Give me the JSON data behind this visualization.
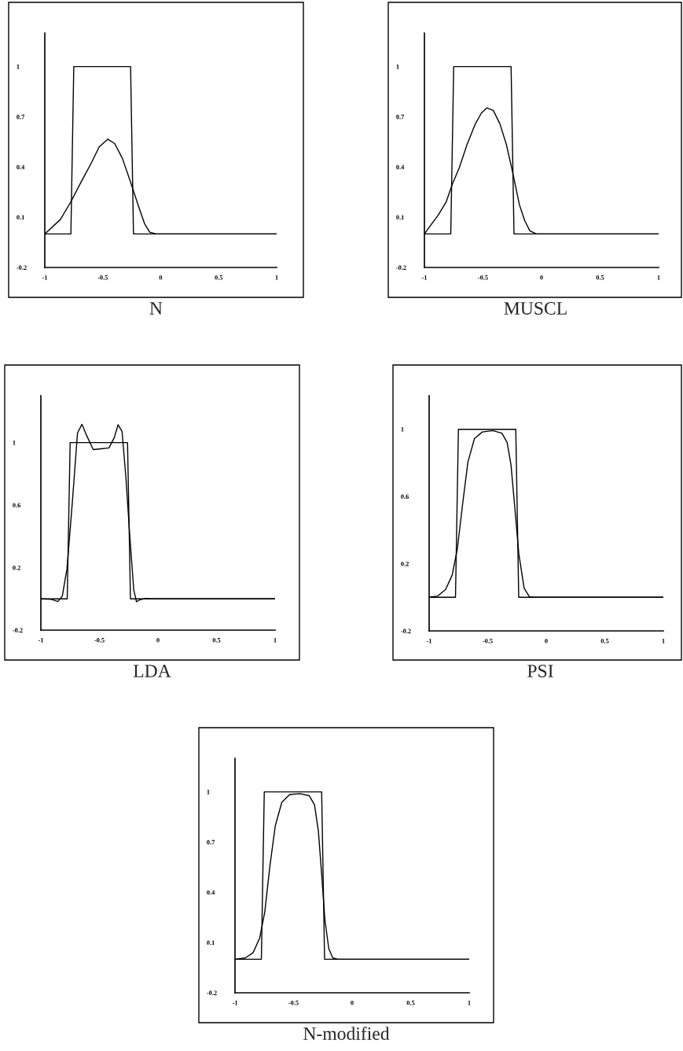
{
  "chart_data": [
    {
      "type": "line",
      "title": "N",
      "xlim": [
        -1,
        1
      ],
      "ylim": [
        -0.2,
        1.2
      ],
      "xticks": [
        -1,
        -0.5,
        0,
        0.5,
        1
      ],
      "yticks": [
        -0.2,
        0.1,
        0.4,
        0.7,
        1
      ],
      "grid": false,
      "line_style": "solid",
      "series": [
        {
          "color": "#000000",
          "x": [
            -1,
            -0.775,
            -0.75,
            -0.26,
            -0.235,
            1
          ],
          "values": [
            0,
            0,
            1,
            1,
            0,
            0
          ]
        },
        {
          "color": "#000000",
          "x": [
            -1,
            -0.866,
            -0.777,
            -0.687,
            -0.598,
            -0.531,
            -0.457,
            -0.397,
            -0.33,
            -0.263,
            -0.196,
            -0.14,
            -0.095,
            -0.039,
            1
          ],
          "values": [
            0,
            0.086,
            0.19,
            0.31,
            0.425,
            0.52,
            0.566,
            0.54,
            0.45,
            0.316,
            0.175,
            0.063,
            0.011,
            0,
            0
          ]
        }
      ]
    },
    {
      "type": "line",
      "title": "MUSCL",
      "xlim": [
        -1,
        1
      ],
      "ylim": [
        -0.2,
        1.2
      ],
      "xticks": [
        -1,
        -0.5,
        0,
        0.5,
        1
      ],
      "yticks": [
        -0.2,
        0.1,
        0.4,
        0.7,
        1
      ],
      "grid": false,
      "line_style": "solid",
      "series": [
        {
          "color": "#000000",
          "x": [
            -1,
            -0.775,
            -0.75,
            -0.26,
            -0.235,
            1
          ],
          "values": [
            0,
            0,
            1,
            1,
            0,
            0
          ]
        },
        {
          "color": "#000000",
          "x": [
            -1,
            -0.949,
            -0.882,
            -0.815,
            -0.76,
            -0.703,
            -0.636,
            -0.569,
            -0.514,
            -0.468,
            -0.412,
            -0.356,
            -0.3,
            -0.245,
            -0.189,
            -0.144,
            -0.1,
            -0.044,
            1
          ],
          "values": [
            0,
            0.05,
            0.113,
            0.19,
            0.3,
            0.394,
            0.534,
            0.652,
            0.722,
            0.753,
            0.738,
            0.659,
            0.534,
            0.363,
            0.175,
            0.081,
            0.019,
            0,
            0
          ]
        }
      ]
    },
    {
      "type": "line",
      "title": "LDA",
      "xlim": [
        -1,
        1
      ],
      "ylim": [
        -0.2,
        1.3
      ],
      "xticks": [
        -1,
        -0.5,
        0,
        0.5,
        1
      ],
      "yticks": [
        -0.2,
        0.2,
        0.6,
        1
      ],
      "grid": false,
      "line_style": "solid",
      "series": [
        {
          "color": "#000000",
          "x": [
            -1,
            -0.775,
            -0.75,
            -0.26,
            -0.235,
            1
          ],
          "values": [
            0,
            0,
            1,
            1,
            0,
            0
          ]
        },
        {
          "color": "#000000",
          "x": [
            -1,
            -0.911,
            -0.855,
            -0.817,
            -0.777,
            -0.732,
            -0.687,
            -0.649,
            -0.609,
            -0.553,
            -0.486,
            -0.419,
            -0.374,
            -0.341,
            -0.307,
            -0.274,
            -0.24,
            -0.207,
            -0.184,
            -0.151,
            -0.106,
            -0.061,
            1
          ],
          "values": [
            0,
            -0.003,
            -0.017,
            0.017,
            0.193,
            0.611,
            1.062,
            1.117,
            1.045,
            0.955,
            0.96,
            0.966,
            1.03,
            1.114,
            1.072,
            0.779,
            0.394,
            0.059,
            -0.018,
            -0.005,
            0.003,
            0,
            0
          ]
        }
      ]
    },
    {
      "type": "line",
      "title": "PSI",
      "xlim": [
        -1,
        1
      ],
      "ylim": [
        -0.2,
        1.2
      ],
      "xticks": [
        -1,
        -0.5,
        0,
        0.5,
        1
      ],
      "yticks": [
        -0.2,
        0.2,
        0.6,
        1
      ],
      "grid": false,
      "line_style": "solid",
      "series": [
        {
          "color": "#000000",
          "x": [
            -1,
            -0.775,
            -0.75,
            -0.26,
            -0.235,
            1
          ],
          "values": [
            0,
            0,
            1,
            1,
            0,
            0
          ]
        },
        {
          "color": "#000000",
          "x": [
            -1,
            -0.926,
            -0.859,
            -0.803,
            -0.759,
            -0.714,
            -0.669,
            -0.613,
            -0.546,
            -0.457,
            -0.379,
            -0.334,
            -0.301,
            -0.267,
            -0.234,
            -0.189,
            -0.144,
            -0.1,
            1
          ],
          "values": [
            0,
            0.008,
            0.047,
            0.133,
            0.289,
            0.555,
            0.805,
            0.945,
            0.984,
            0.992,
            0.977,
            0.922,
            0.789,
            0.523,
            0.258,
            0.055,
            0.003,
            0,
            0
          ]
        }
      ]
    },
    {
      "type": "line",
      "title": "N-modified",
      "xlim": [
        -1,
        1
      ],
      "ylim": [
        -0.2,
        1.2
      ],
      "xticks": [
        -1,
        -0.5,
        0,
        0.5,
        1
      ],
      "yticks": [
        -0.2,
        0.1,
        0.4,
        0.7,
        1
      ],
      "grid": false,
      "line_style": "solid",
      "series": [
        {
          "color": "#000000",
          "x": [
            -1,
            -0.775,
            -0.75,
            -0.26,
            -0.235,
            1
          ],
          "values": [
            0,
            0,
            1,
            1,
            0,
            0
          ]
        },
        {
          "color": "#000000",
          "x": [
            -1,
            -0.913,
            -0.846,
            -0.79,
            -0.746,
            -0.701,
            -0.656,
            -0.6,
            -0.533,
            -0.444,
            -0.366,
            -0.321,
            -0.288,
            -0.261,
            -0.232,
            -0.199,
            -0.165,
            -0.121,
            1
          ],
          "values": [
            0,
            0.008,
            0.039,
            0.125,
            0.281,
            0.563,
            0.797,
            0.938,
            0.984,
            0.989,
            0.977,
            0.922,
            0.766,
            0.516,
            0.234,
            0.063,
            0.008,
            0,
            0
          ]
        }
      ]
    }
  ]
}
